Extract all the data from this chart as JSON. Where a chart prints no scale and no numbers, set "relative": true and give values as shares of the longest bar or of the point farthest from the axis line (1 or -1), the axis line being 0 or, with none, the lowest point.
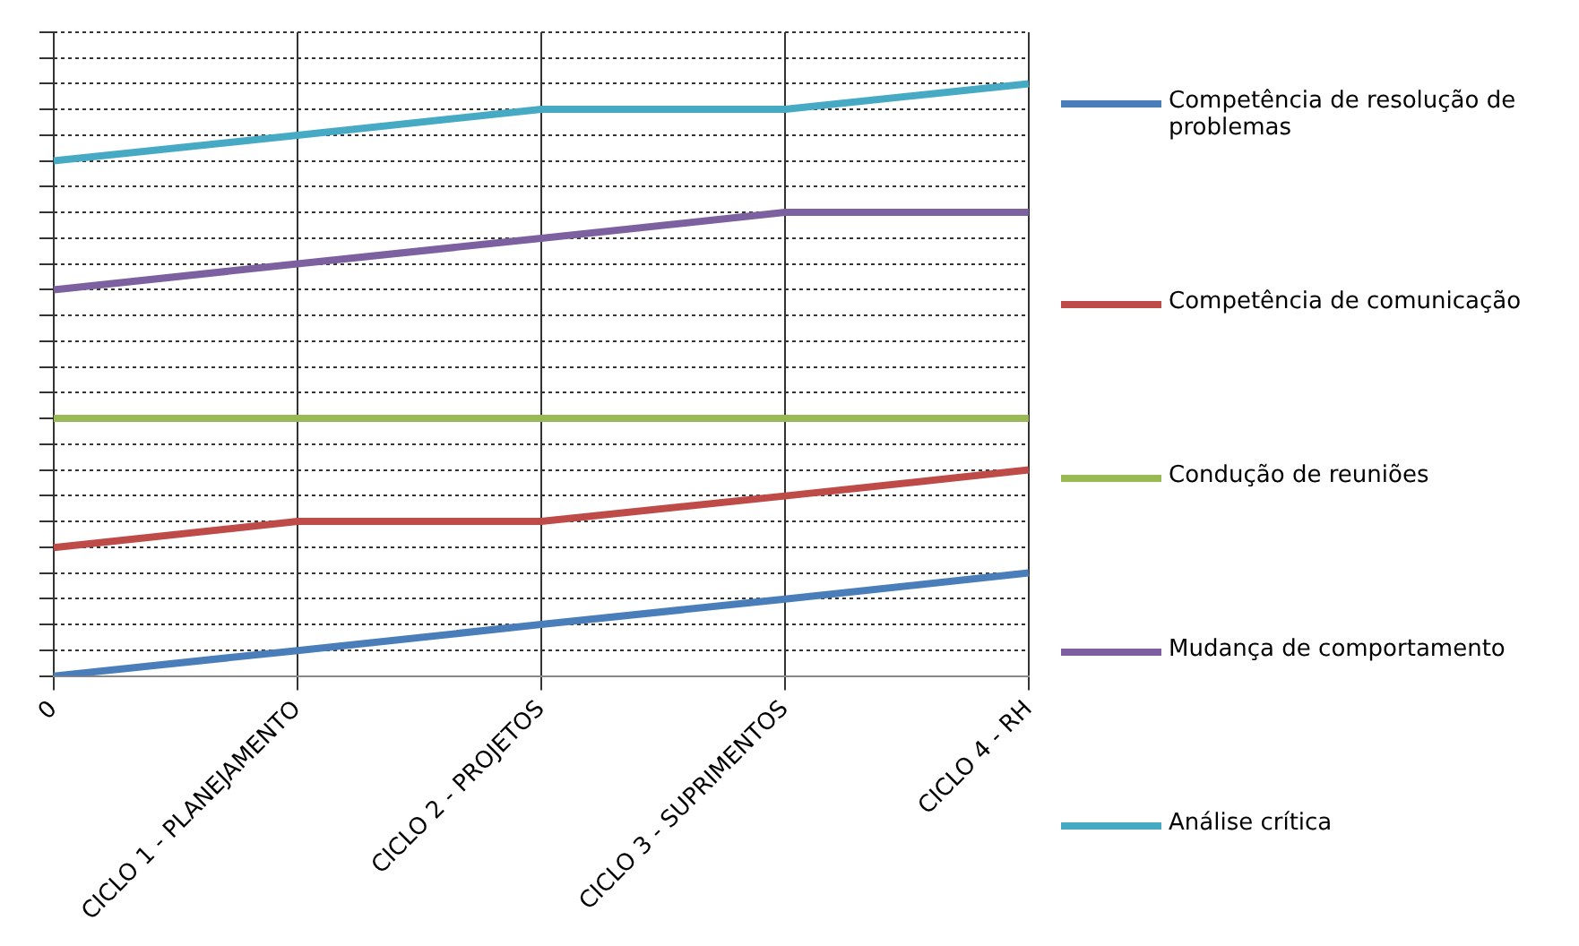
{
  "chart_data": {
    "type": "line",
    "relative": true,
    "grid": true,
    "legend": "right",
    "marker": "none",
    "line_style": "solid",
    "categories": [
      "0",
      "CICLO 1 - PLANEJAMENTO",
      "CICLO 2 - PROJETOS",
      "CICLO 3 - SUPRIMENTOS",
      "CICLO 4 - RH"
    ],
    "series": [
      {
        "name": "Competência de resolução de problemas",
        "color": "#4a7ebb",
        "values": [
          0,
          0.043,
          0.087,
          0.13,
          0.174
        ]
      },
      {
        "name": "Competência de comunicação",
        "color": "#be4b48",
        "values": [
          0.217,
          0.261,
          0.261,
          0.304,
          0.348
        ]
      },
      {
        "name": "Condução de reuniões",
        "color": "#98b954",
        "values": [
          0.435,
          0.435,
          0.435,
          0.435,
          0.435
        ]
      },
      {
        "name": "Mudança de comportamento",
        "color": "#7d60a0",
        "values": [
          0.652,
          0.696,
          0.739,
          0.783,
          0.783
        ]
      },
      {
        "name": "Análise crítica",
        "color": "#46aac5",
        "values": [
          0.87,
          0.913,
          0.957,
          0.957,
          1
        ]
      }
    ]
  }
}
